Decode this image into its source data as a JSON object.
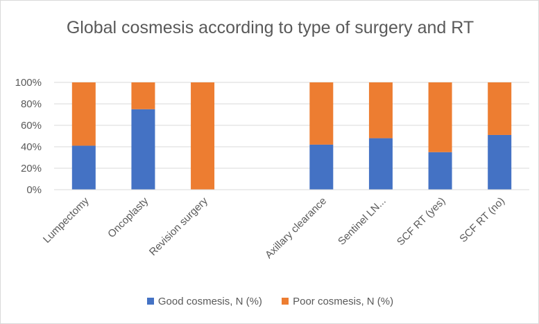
{
  "chart_data": {
    "type": "bar",
    "stacked": "percent",
    "title": "Global cosmesis according to type of surgery and RT",
    "categories": [
      "Lumpectomy",
      "Oncoplasty",
      "Revision surgery",
      "",
      "Axillary clearance",
      "Sentinel LN...",
      "SCF RT (yes)",
      "SCF RT (no)"
    ],
    "series": [
      {
        "name": "Good cosmesis, N (%)",
        "color": "#4472c4",
        "values": [
          41,
          75,
          0,
          null,
          42,
          48,
          35,
          51
        ]
      },
      {
        "name": "Poor cosmesis, N (%)",
        "color": "#ed7d31",
        "values": [
          59,
          25,
          100,
          null,
          58,
          52,
          65,
          49
        ]
      }
    ],
    "yticks": [
      "0%",
      "20%",
      "40%",
      "60%",
      "80%",
      "100%"
    ],
    "ylim": [
      0,
      100
    ],
    "xlabel": "",
    "ylabel": "",
    "legend": "bottom"
  }
}
